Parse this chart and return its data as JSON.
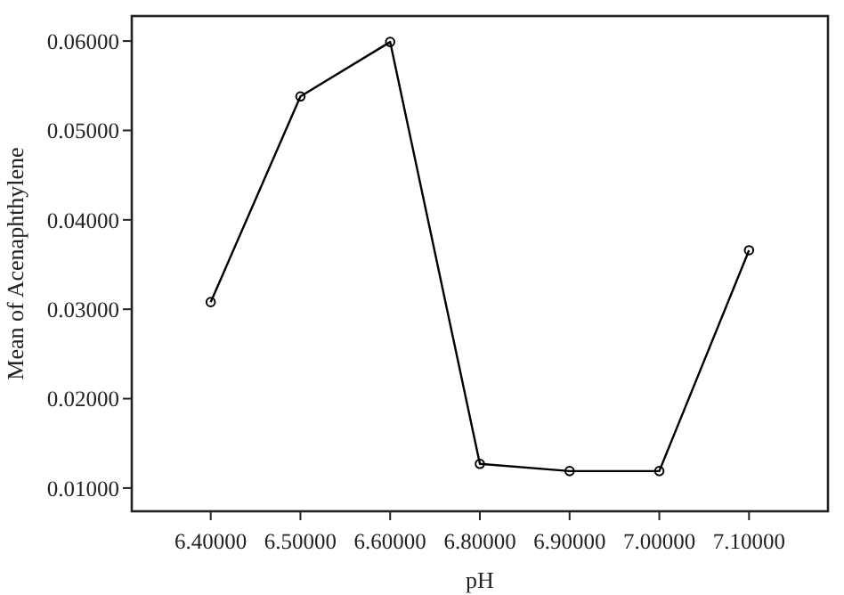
{
  "chart_data": {
    "type": "line",
    "xlabel": "pH",
    "ylabel": "Mean of Acenaphthylene",
    "categories": [
      "6.40000",
      "6.50000",
      "6.60000",
      "6.80000",
      "6.90000",
      "7.00000",
      "7.10000"
    ],
    "series": [
      {
        "color": "#000000",
        "values": [
          0.0308,
          0.0538,
          0.0599,
          0.0127,
          0.0119,
          0.0119,
          0.0366
        ]
      }
    ],
    "ylim": [
      0.0074,
      0.0628
    ],
    "yticks": [
      {
        "value": 0.01,
        "label": "0.01000"
      },
      {
        "value": 0.02,
        "label": "0.02000"
      },
      {
        "value": 0.03,
        "label": "0.03000"
      },
      {
        "value": 0.04,
        "label": "0.04000"
      },
      {
        "value": 0.05,
        "label": "0.05000"
      },
      {
        "value": 0.06,
        "label": "0.06000"
      }
    ],
    "marker": "circle",
    "line_style": "solid",
    "grid": false
  }
}
